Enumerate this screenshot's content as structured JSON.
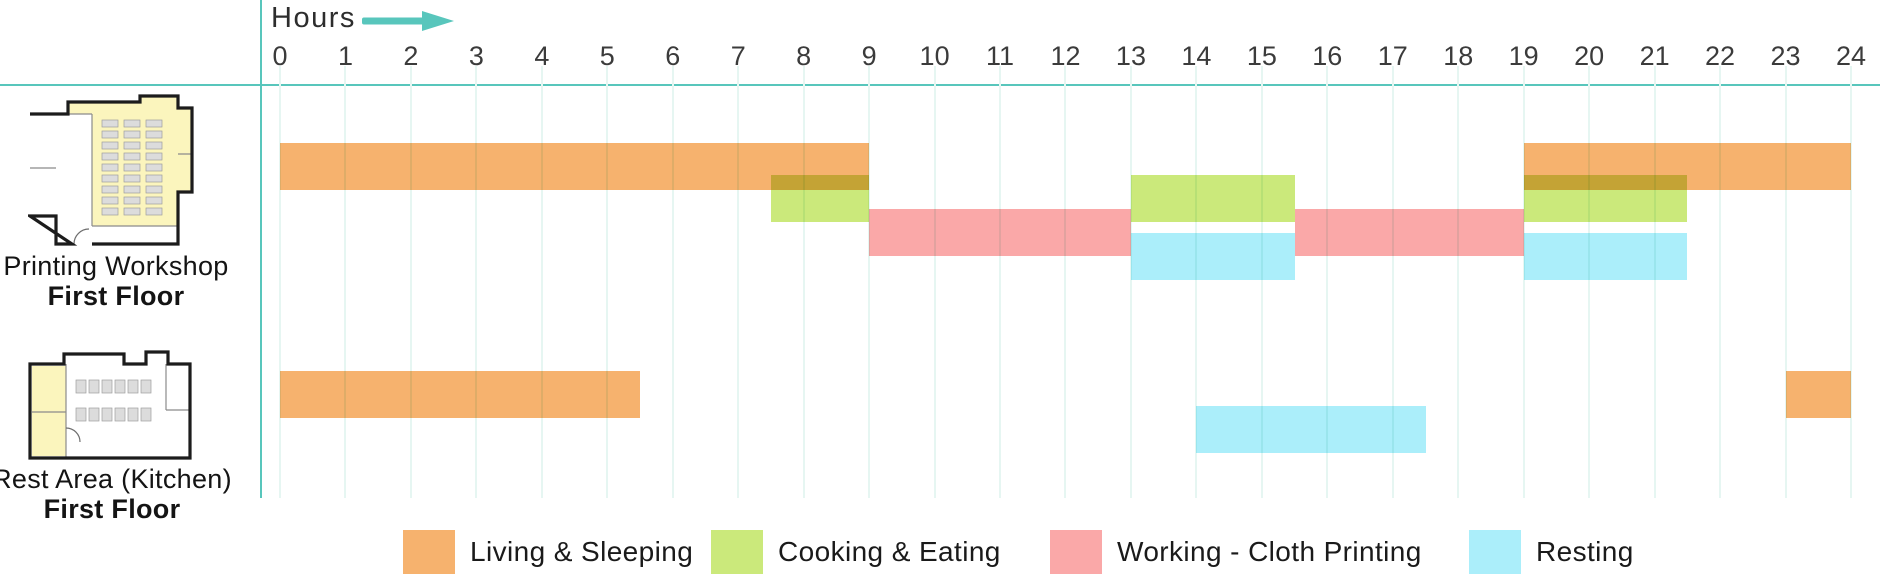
{
  "header": {
    "hours_label": "Hours"
  },
  "axis": {
    "min": 0,
    "max": 24,
    "tick_labels": [
      "0",
      "1",
      "2",
      "3",
      "4",
      "5",
      "6",
      "7",
      "8",
      "9",
      "10",
      "11",
      "12",
      "13",
      "14",
      "15",
      "16",
      "17",
      "18",
      "19",
      "20",
      "21",
      "22",
      "23",
      "24"
    ]
  },
  "colors": {
    "accent_teal": "#58C6BC",
    "orange": "#F6B26E",
    "green": "#CBE97B",
    "pink": "#FAA8A8",
    "blue": "#ABEEFA",
    "gridline": "#E6F6F2",
    "plan_highlight": "#FBF5BD",
    "text": "#2d2d2d"
  },
  "rows": [
    {
      "title": "Printing Workshop",
      "floor": "First Floor"
    },
    {
      "title": "Rest Area (Kitchen)",
      "floor": "First Floor"
    }
  ],
  "legend": {
    "items": [
      {
        "label": "Living & Sleeping",
        "color": "orange"
      },
      {
        "label": "Cooking & Eating",
        "color": "green"
      },
      {
        "label": "Working - Cloth Printing",
        "color": "pink"
      },
      {
        "label": "Resting",
        "color": "blue"
      }
    ]
  },
  "chart_data": {
    "type": "bar",
    "subtype": "gantt-daily-schedule",
    "xlabel": "Hours",
    "x_axis": {
      "min": 0,
      "max": 24,
      "tick_interval": 1
    },
    "grid": true,
    "legend_position": "bottom",
    "rows": [
      {
        "label": "Printing Workshop — First Floor",
        "segments": [
          {
            "category": "Living & Sleeping",
            "start": 0,
            "end": 9
          },
          {
            "category": "Cooking & Eating",
            "start": 7.5,
            "end": 9
          },
          {
            "category": "Working - Cloth Printing",
            "start": 9,
            "end": 13
          },
          {
            "category": "Cooking & Eating",
            "start": 13,
            "end": 15.5
          },
          {
            "category": "Resting",
            "start": 13,
            "end": 15.5
          },
          {
            "category": "Working - Cloth Printing",
            "start": 15.5,
            "end": 19
          },
          {
            "category": "Living & Sleeping",
            "start": 19,
            "end": 24
          },
          {
            "category": "Cooking & Eating",
            "start": 19,
            "end": 21.5
          },
          {
            "category": "Resting",
            "start": 19,
            "end": 21.5
          }
        ]
      },
      {
        "label": "Rest Area (Kitchen) — First Floor",
        "segments": [
          {
            "category": "Living & Sleeping",
            "start": 0,
            "end": 5.5
          },
          {
            "category": "Resting",
            "start": 14,
            "end": 17.5
          },
          {
            "category": "Living & Sleeping",
            "start": 23,
            "end": 24
          }
        ]
      }
    ]
  }
}
